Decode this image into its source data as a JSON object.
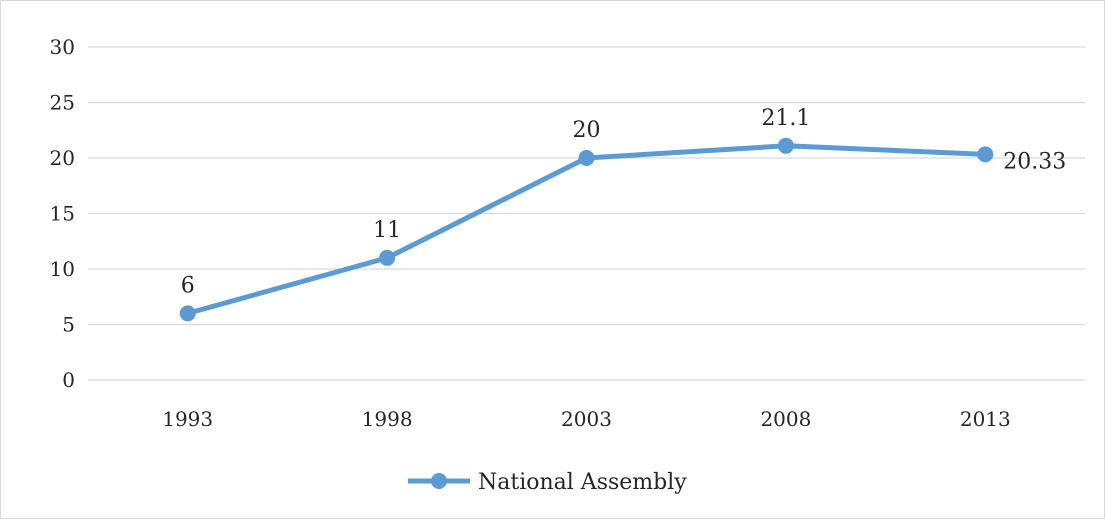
{
  "chart_data": {
    "type": "line",
    "categories": [
      "1993",
      "1998",
      "2003",
      "2008",
      "2013"
    ],
    "series": [
      {
        "name": "National Assembly",
        "values": [
          6,
          11,
          20,
          21.1,
          20.33
        ],
        "labels": [
          "6",
          "11",
          "20",
          "21.1",
          "20.33"
        ],
        "color": "#5b9bd5"
      }
    ],
    "y_ticks": [
      "0",
      "5",
      "10",
      "15",
      "20",
      "25",
      "30"
    ],
    "ylim": [
      0,
      30
    ],
    "grid": true,
    "legend_position": "bottom",
    "title": "",
    "xlabel": "",
    "ylabel": ""
  },
  "colors": {
    "line": "#5b9bd5",
    "grid": "#d9d9d9",
    "text": "#262626"
  }
}
